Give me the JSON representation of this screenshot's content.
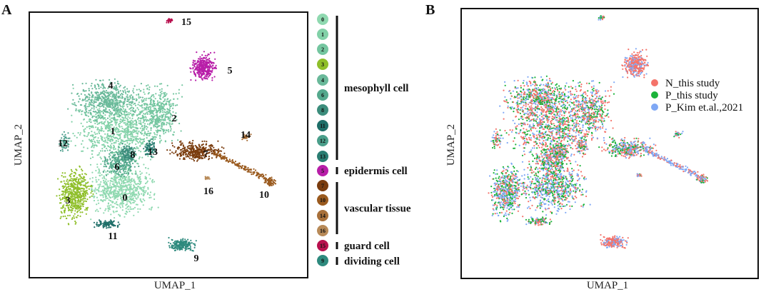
{
  "chart_data": [
    {
      "type": "scatter",
      "panel_label": "A",
      "xlabel": "UMAP_1",
      "ylabel": "UMAP_2",
      "grid": false,
      "legend_placement": "right",
      "clusters": [
        {
          "id": "0",
          "color": "#8fd9b0",
          "group": "mesophyll cell"
        },
        {
          "id": "1",
          "color": "#82d1a8",
          "group": "mesophyll cell"
        },
        {
          "id": "2",
          "color": "#74c6a0",
          "group": "mesophyll cell"
        },
        {
          "id": "3",
          "color": "#8fbf2a",
          "group": "mesophyll cell"
        },
        {
          "id": "4",
          "color": "#6ab99a",
          "group": "mesophyll cell"
        },
        {
          "id": "6",
          "color": "#55a98d",
          "group": "mesophyll cell"
        },
        {
          "id": "8",
          "color": "#3c8d7c",
          "group": "mesophyll cell"
        },
        {
          "id": "11",
          "color": "#1e6e68",
          "group": "mesophyll cell"
        },
        {
          "id": "12",
          "color": "#4a9e8a",
          "group": "mesophyll cell"
        },
        {
          "id": "13",
          "color": "#2a7d72",
          "group": "mesophyll cell"
        },
        {
          "id": "5",
          "color": "#b81ea8",
          "group": "epidermis cell"
        },
        {
          "id": "7",
          "color": "#7a3c0e",
          "group": "vascular tissue"
        },
        {
          "id": "10",
          "color": "#9a5a1e",
          "group": "vascular tissue"
        },
        {
          "id": "14",
          "color": "#a8703a",
          "group": "vascular tissue"
        },
        {
          "id": "16",
          "color": "#b88a58",
          "group": "vascular tissue"
        },
        {
          "id": "15",
          "color": "#b8104e",
          "group": "guard cell"
        },
        {
          "id": "9",
          "color": "#2e8a7e",
          "group": "dividing cell"
        }
      ],
      "groups": [
        "mesophyll cell",
        "epidermis cell",
        "vascular tissue",
        "guard cell",
        "dividing cell"
      ]
    },
    {
      "type": "scatter",
      "panel_label": "B",
      "xlabel": "UMAP_1",
      "ylabel": "UMAP_2",
      "grid": false,
      "legend_placement": "right",
      "series": [
        {
          "name": "N_this study",
          "color": "#f4736a"
        },
        {
          "name": "P_this study",
          "color": "#1bb33a"
        },
        {
          "name": "P_Kim et.al.,2021",
          "color": "#7fa8f5"
        }
      ]
    }
  ]
}
